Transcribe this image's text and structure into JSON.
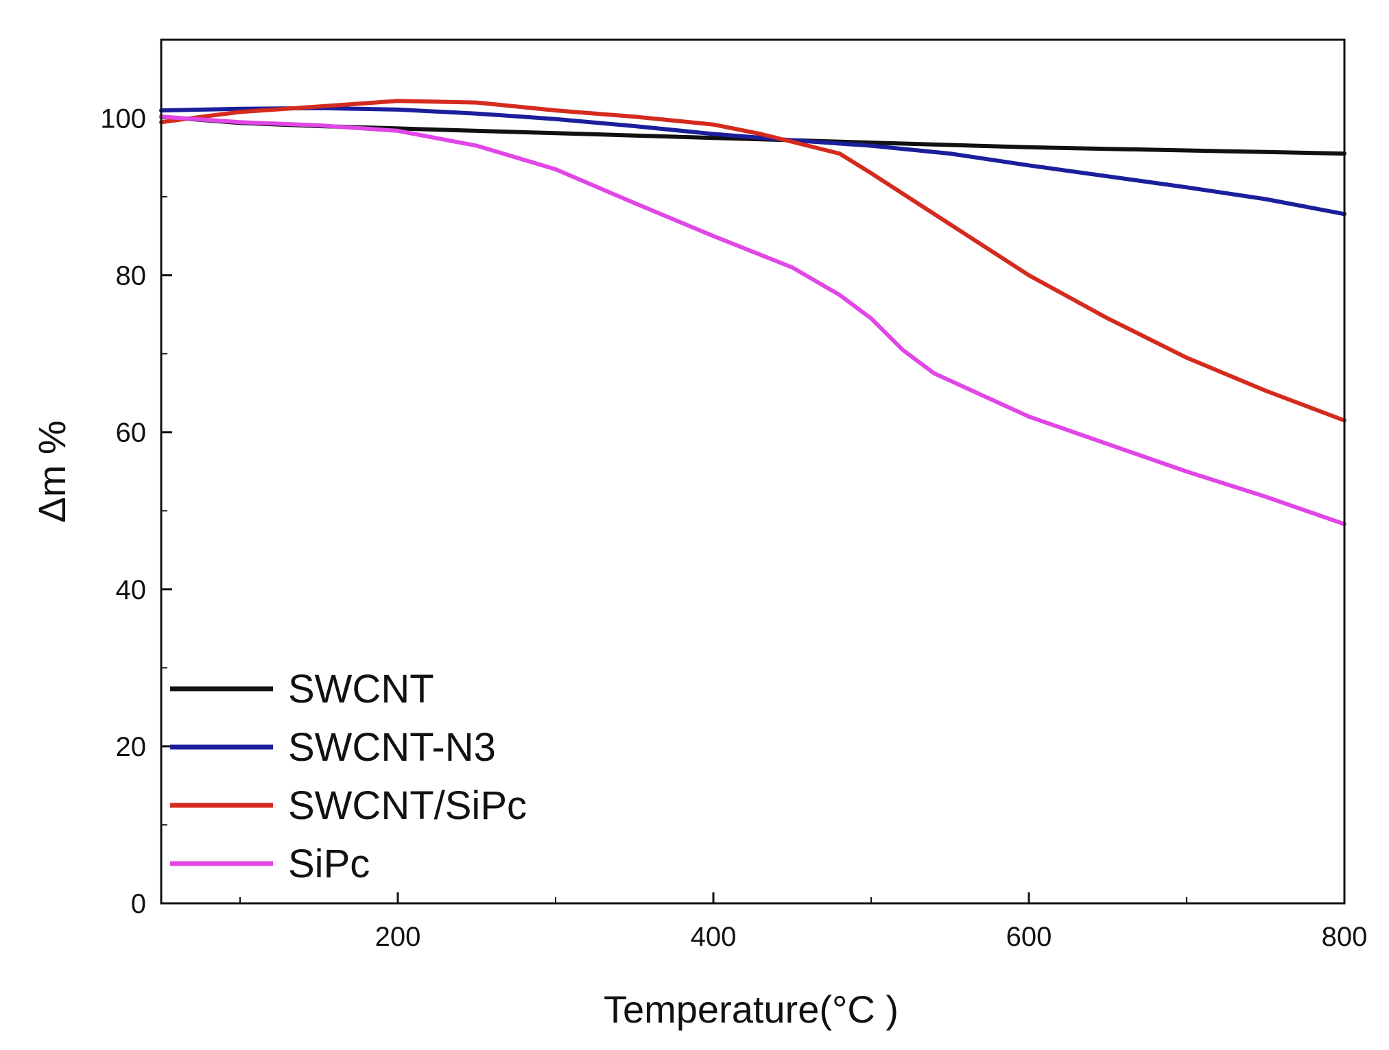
{
  "chart_data": {
    "type": "line",
    "title": "",
    "xlabel": "Temperature(°C )",
    "ylabel": "Δm %",
    "xlim": [
      50,
      800
    ],
    "ylim": [
      0,
      110
    ],
    "xticks": [
      200,
      400,
      600,
      800
    ],
    "xminor": [
      100,
      300,
      500,
      700
    ],
    "yticks": [
      0,
      20,
      40,
      60,
      80,
      100
    ],
    "yminor": [
      10,
      30,
      50,
      70,
      90,
      110
    ],
    "grid": false,
    "legend_position": "bottom-left",
    "series": [
      {
        "name": "SWCNT",
        "color": "#111111",
        "x": [
          50,
          100,
          150,
          200,
          250,
          300,
          350,
          400,
          450,
          500,
          550,
          600,
          650,
          700,
          750,
          800
        ],
        "y": [
          100.2,
          99.4,
          99.0,
          98.7,
          98.4,
          98.1,
          97.8,
          97.5,
          97.2,
          96.9,
          96.6,
          96.3,
          96.1,
          95.9,
          95.7,
          95.5
        ]
      },
      {
        "name": "SWCNT-N3",
        "color": "#1b1f9c",
        "x": [
          50,
          100,
          150,
          200,
          250,
          300,
          350,
          400,
          450,
          500,
          550,
          600,
          650,
          700,
          750,
          800
        ],
        "y": [
          101.0,
          101.2,
          101.3,
          101.1,
          100.6,
          99.9,
          99.0,
          98.0,
          97.2,
          96.5,
          95.5,
          94.0,
          92.6,
          91.2,
          89.7,
          87.8
        ]
      },
      {
        "name": "SWCNT/SiPc",
        "color": "#d42b1e",
        "x": [
          50,
          80,
          100,
          150,
          200,
          250,
          300,
          350,
          400,
          430,
          450,
          480,
          500,
          550,
          600,
          650,
          700,
          750,
          800
        ],
        "y": [
          99.5,
          100.3,
          100.8,
          101.5,
          102.2,
          102.0,
          101.0,
          100.2,
          99.2,
          98.0,
          97.0,
          95.5,
          93.0,
          86.5,
          80.0,
          74.5,
          69.5,
          65.3,
          61.5
        ]
      },
      {
        "name": "SiPc",
        "color": "#e047e6",
        "x": [
          50,
          100,
          150,
          200,
          250,
          300,
          350,
          400,
          450,
          480,
          500,
          520,
          540,
          600,
          650,
          700,
          750,
          800
        ],
        "y": [
          100.2,
          99.5,
          99.1,
          98.4,
          96.5,
          93.5,
          89.2,
          85.0,
          81.0,
          77.5,
          74.5,
          70.5,
          67.5,
          62.0,
          58.5,
          55.0,
          51.8,
          48.3
        ]
      }
    ]
  }
}
